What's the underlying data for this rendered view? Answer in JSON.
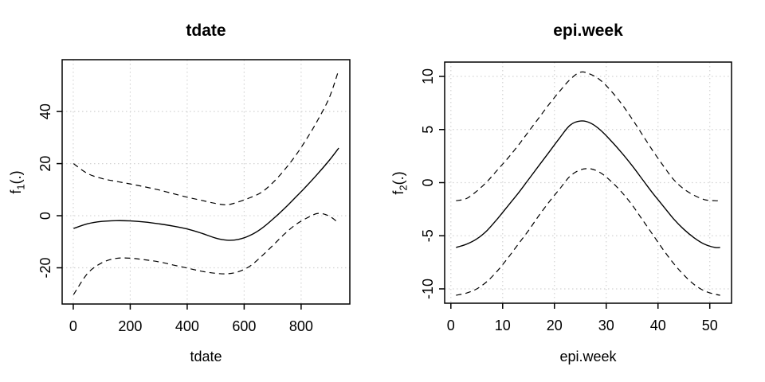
{
  "background": "#ffffff",
  "text_color": "#000000",
  "chart_data": [
    {
      "type": "line",
      "title": "tdate",
      "xlabel": "tdate",
      "ylabel": {
        "base": "f",
        "sub": "1",
        "args": "(.)"
      },
      "x_ticks": [
        0,
        200,
        400,
        600,
        800
      ],
      "y_ticks": [
        -20,
        0,
        20,
        40
      ],
      "xlim": [
        -39,
        971
      ],
      "ylim": [
        -33.9,
        59.9
      ],
      "grid": true,
      "grid_color": "#d3d3d3",
      "line_color": "#000000",
      "legend": "none",
      "series": [
        {
          "name": "estimate",
          "style": "solid",
          "x": [
            1,
            50,
            100,
            150,
            200,
            250,
            300,
            350,
            400,
            450,
            500,
            540,
            580,
            620,
            660,
            700,
            740,
            780,
            820,
            860,
            900,
            932
          ],
          "y": [
            -4.9,
            -3.1,
            -2.2,
            -1.9,
            -2.0,
            -2.4,
            -3.1,
            -4.0,
            -5.1,
            -6.7,
            -8.6,
            -9.4,
            -9.1,
            -7.6,
            -5.0,
            -1.4,
            2.6,
            7.0,
            11.5,
            16.3,
            21.4,
            26.0
          ]
        },
        {
          "name": "upper-ci",
          "style": "dashed",
          "x": [
            1,
            50,
            100,
            150,
            200,
            250,
            300,
            350,
            400,
            450,
            500,
            540,
            580,
            620,
            660,
            700,
            740,
            780,
            820,
            860,
            900,
            932
          ],
          "y": [
            20.0,
            16.2,
            14.3,
            13.2,
            12.2,
            11.1,
            9.9,
            8.5,
            7.1,
            5.9,
            4.7,
            4.2,
            5.3,
            6.9,
            8.9,
            12.6,
            17.4,
            23.0,
            29.6,
            37.0,
            45.6,
            56.0
          ]
        },
        {
          "name": "lower-ci",
          "style": "dashed",
          "x": [
            1,
            50,
            100,
            150,
            200,
            250,
            300,
            350,
            400,
            450,
            500,
            540,
            580,
            620,
            660,
            700,
            740,
            780,
            820,
            860,
            900,
            932
          ],
          "y": [
            -30.3,
            -22.2,
            -18.1,
            -16.4,
            -16.3,
            -16.9,
            -17.7,
            -18.9,
            -20.1,
            -21.3,
            -22.1,
            -22.3,
            -21.5,
            -19.4,
            -15.7,
            -11.5,
            -7.2,
            -3.5,
            -0.9,
            0.9,
            -0.2,
            -2.9
          ]
        }
      ]
    },
    {
      "type": "line",
      "title": "epi.week",
      "xlabel": "epi.week",
      "ylabel": {
        "base": "f",
        "sub": "2",
        "args": "(.)"
      },
      "x_ticks": [
        0,
        10,
        20,
        30,
        40,
        50
      ],
      "y_ticks": [
        -10,
        -5,
        0,
        5,
        10
      ],
      "xlim": [
        -1.2,
        54.2
      ],
      "ylim": [
        -11.35,
        11.35
      ],
      "grid": true,
      "grid_color": "#d3d3d3",
      "line_color": "#000000",
      "legend": "none",
      "series": [
        {
          "name": "estimate",
          "style": "solid",
          "x": [
            1,
            3,
            5,
            7,
            9,
            11,
            13,
            15,
            17,
            19,
            21,
            23,
            25,
            27,
            29,
            31,
            33,
            35,
            37,
            39,
            41,
            43,
            45,
            47,
            49,
            51,
            52
          ],
          "y": [
            -6.1,
            -5.8,
            -5.3,
            -4.5,
            -3.4,
            -2.2,
            -1.0,
            0.3,
            1.6,
            2.9,
            4.2,
            5.4,
            5.8,
            5.6,
            4.9,
            3.9,
            2.8,
            1.6,
            0.3,
            -1.0,
            -2.2,
            -3.4,
            -4.4,
            -5.2,
            -5.8,
            -6.1,
            -6.1
          ]
        },
        {
          "name": "upper-ci",
          "style": "dashed",
          "x": [
            1,
            3,
            5,
            7,
            9,
            11,
            13,
            15,
            17,
            19,
            21,
            23,
            25,
            27,
            29,
            31,
            33,
            35,
            37,
            39,
            41,
            43,
            45,
            47,
            49,
            51,
            52
          ],
          "y": [
            -1.7,
            -1.5,
            -0.8,
            0.1,
            1.2,
            2.3,
            3.5,
            4.8,
            6.1,
            7.4,
            8.6,
            9.7,
            10.4,
            10.2,
            9.6,
            8.6,
            7.4,
            6.0,
            4.5,
            3.0,
            1.6,
            0.3,
            -0.6,
            -1.2,
            -1.6,
            -1.7,
            -1.7
          ]
        },
        {
          "name": "lower-ci",
          "style": "dashed",
          "x": [
            1,
            3,
            5,
            7,
            9,
            11,
            13,
            15,
            17,
            19,
            21,
            23,
            25,
            27,
            29,
            31,
            33,
            35,
            37,
            39,
            41,
            43,
            45,
            47,
            49,
            51,
            52
          ],
          "y": [
            -10.6,
            -10.4,
            -10.0,
            -9.3,
            -8.3,
            -7.1,
            -5.8,
            -4.5,
            -3.1,
            -1.8,
            -0.6,
            0.6,
            1.2,
            1.3,
            0.9,
            0.1,
            -0.9,
            -2.1,
            -3.5,
            -4.9,
            -6.3,
            -7.6,
            -8.7,
            -9.6,
            -10.2,
            -10.5,
            -10.6
          ]
        }
      ]
    }
  ]
}
